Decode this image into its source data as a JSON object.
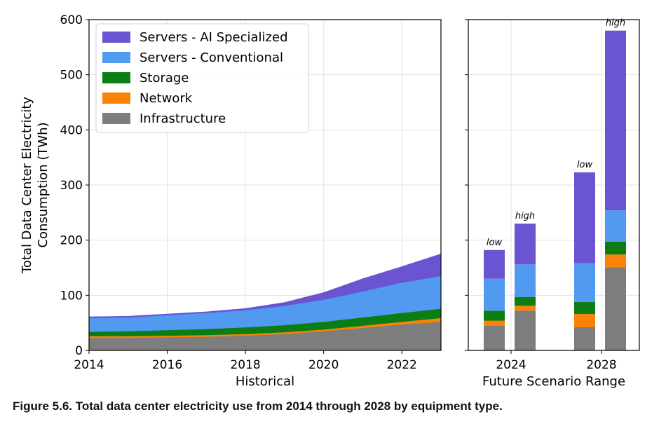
{
  "colors": {
    "ai": "#6a54d2",
    "conventional": "#519af0",
    "storage": "#0b7d13",
    "network": "#f98208",
    "infrastructure": "#7d7d7d"
  },
  "chart_data": [
    {
      "type": "area",
      "stacked": true,
      "xlabel": "Historical",
      "ylabel": [
        "Total Data Center Electricity",
        "Consumption (TWh)"
      ],
      "xlim": [
        2014,
        2023
      ],
      "ylim": [
        0,
        600
      ],
      "xticks": [
        2014,
        2016,
        2018,
        2020,
        2022
      ],
      "yticks": [
        0,
        100,
        200,
        300,
        400,
        500,
        600
      ],
      "grid": true,
      "legend_position": "top-left",
      "x": [
        2014,
        2015,
        2016,
        2017,
        2018,
        2019,
        2020,
        2021,
        2022,
        2023
      ],
      "series": [
        {
          "key": "infrastructure",
          "name": "Infrastructure",
          "values": [
            23,
            23,
            24,
            25,
            27,
            30,
            35,
            41,
            47,
            52
          ]
        },
        {
          "key": "network",
          "name": "Network",
          "values": [
            3,
            3,
            3,
            3,
            3,
            3,
            3,
            4,
            5,
            7
          ]
        },
        {
          "key": "storage",
          "name": "Storage",
          "values": [
            8,
            9,
            10,
            11,
            12,
            13,
            14,
            15,
            16,
            17
          ]
        },
        {
          "key": "conventional",
          "name": "Servers - Conventional",
          "values": [
            25,
            25,
            27,
            29,
            31,
            35,
            40,
            47,
            55,
            59
          ]
        },
        {
          "key": "ai",
          "name": "Servers - AI Specialized",
          "values": [
            2,
            2,
            2,
            2,
            3,
            6,
            13,
            23,
            29,
            40
          ]
        }
      ]
    },
    {
      "type": "bar",
      "stacked": true,
      "xlabel": "Future Scenario Range",
      "ylim": [
        0,
        600
      ],
      "xticks": [
        2024,
        2028
      ],
      "grid": true,
      "bars": [
        {
          "group": 2024,
          "label": "low",
          "infrastructure": 45,
          "network": 9,
          "storage": 18,
          "conventional": 58,
          "ai": 52
        },
        {
          "group": 2024,
          "label": "high",
          "infrastructure": 72,
          "network": 9,
          "storage": 16,
          "conventional": 59,
          "ai": 74
        },
        {
          "group": 2028,
          "label": "low",
          "infrastructure": 42,
          "network": 24,
          "storage": 22,
          "conventional": 70,
          "ai": 165
        },
        {
          "group": 2028,
          "label": "high",
          "infrastructure": 151,
          "network": 23,
          "storage": 23,
          "conventional": 57,
          "ai": 326
        }
      ]
    }
  ],
  "caption": "Figure 5.6.  Total data center electricity use from 2014 through 2028 by equipment type."
}
